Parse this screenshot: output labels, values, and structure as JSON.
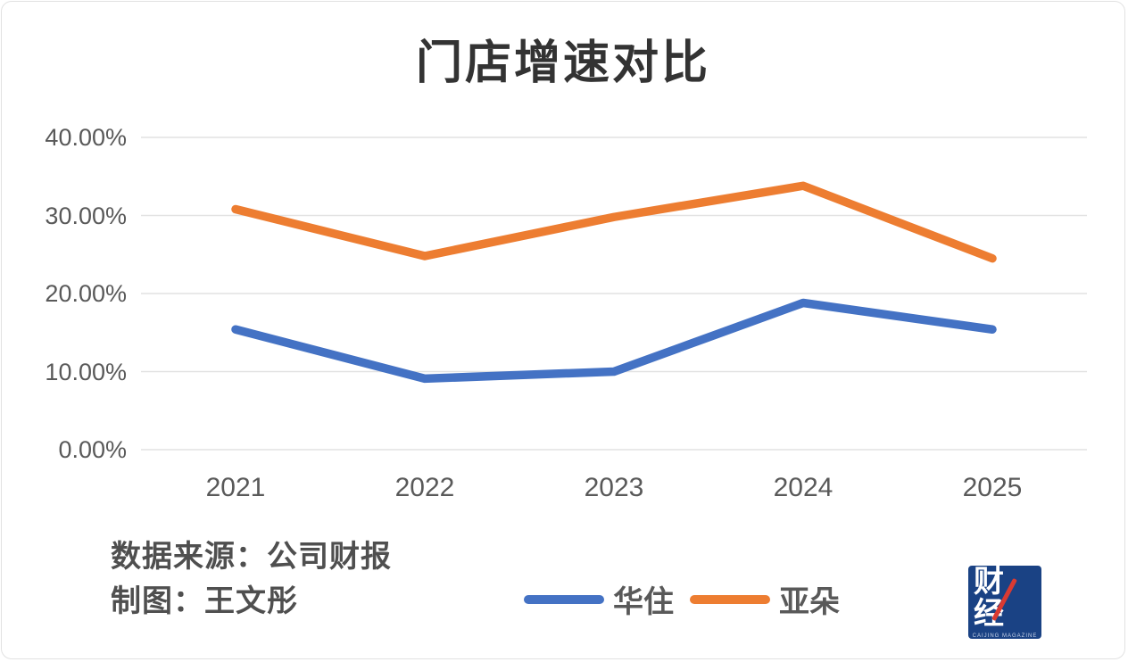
{
  "chart_data": {
    "type": "line",
    "title": "门店增速对比",
    "categories": [
      "2021",
      "2022",
      "2023",
      "2024",
      "2025"
    ],
    "series": [
      {
        "name": "华住",
        "color": "#4472C4",
        "values": [
          15.4,
          9.1,
          10.0,
          18.8,
          15.4
        ]
      },
      {
        "name": "亚朵",
        "color": "#ED7D31",
        "values": [
          30.8,
          24.8,
          29.8,
          33.8,
          24.5
        ]
      }
    ],
    "xlabel": "",
    "ylabel": "",
    "ylim": [
      0,
      40
    ],
    "ytick_step": 10,
    "ytick_labels_top_to_bottom": [
      "40.00%",
      "30.00%",
      "20.00%",
      "10.00%",
      "0.00%"
    ],
    "grid": true,
    "gridline_color": "#e2e2e2",
    "legend_position": "bottom-center"
  },
  "footer": {
    "source_line": "数据来源：公司财报",
    "credit_line": "制图：王文彤"
  },
  "logo": {
    "text": "财经",
    "subtext": "CAIJING MAGAZINE",
    "background_color": "#1A4284",
    "slash_color": "#D93A32"
  }
}
